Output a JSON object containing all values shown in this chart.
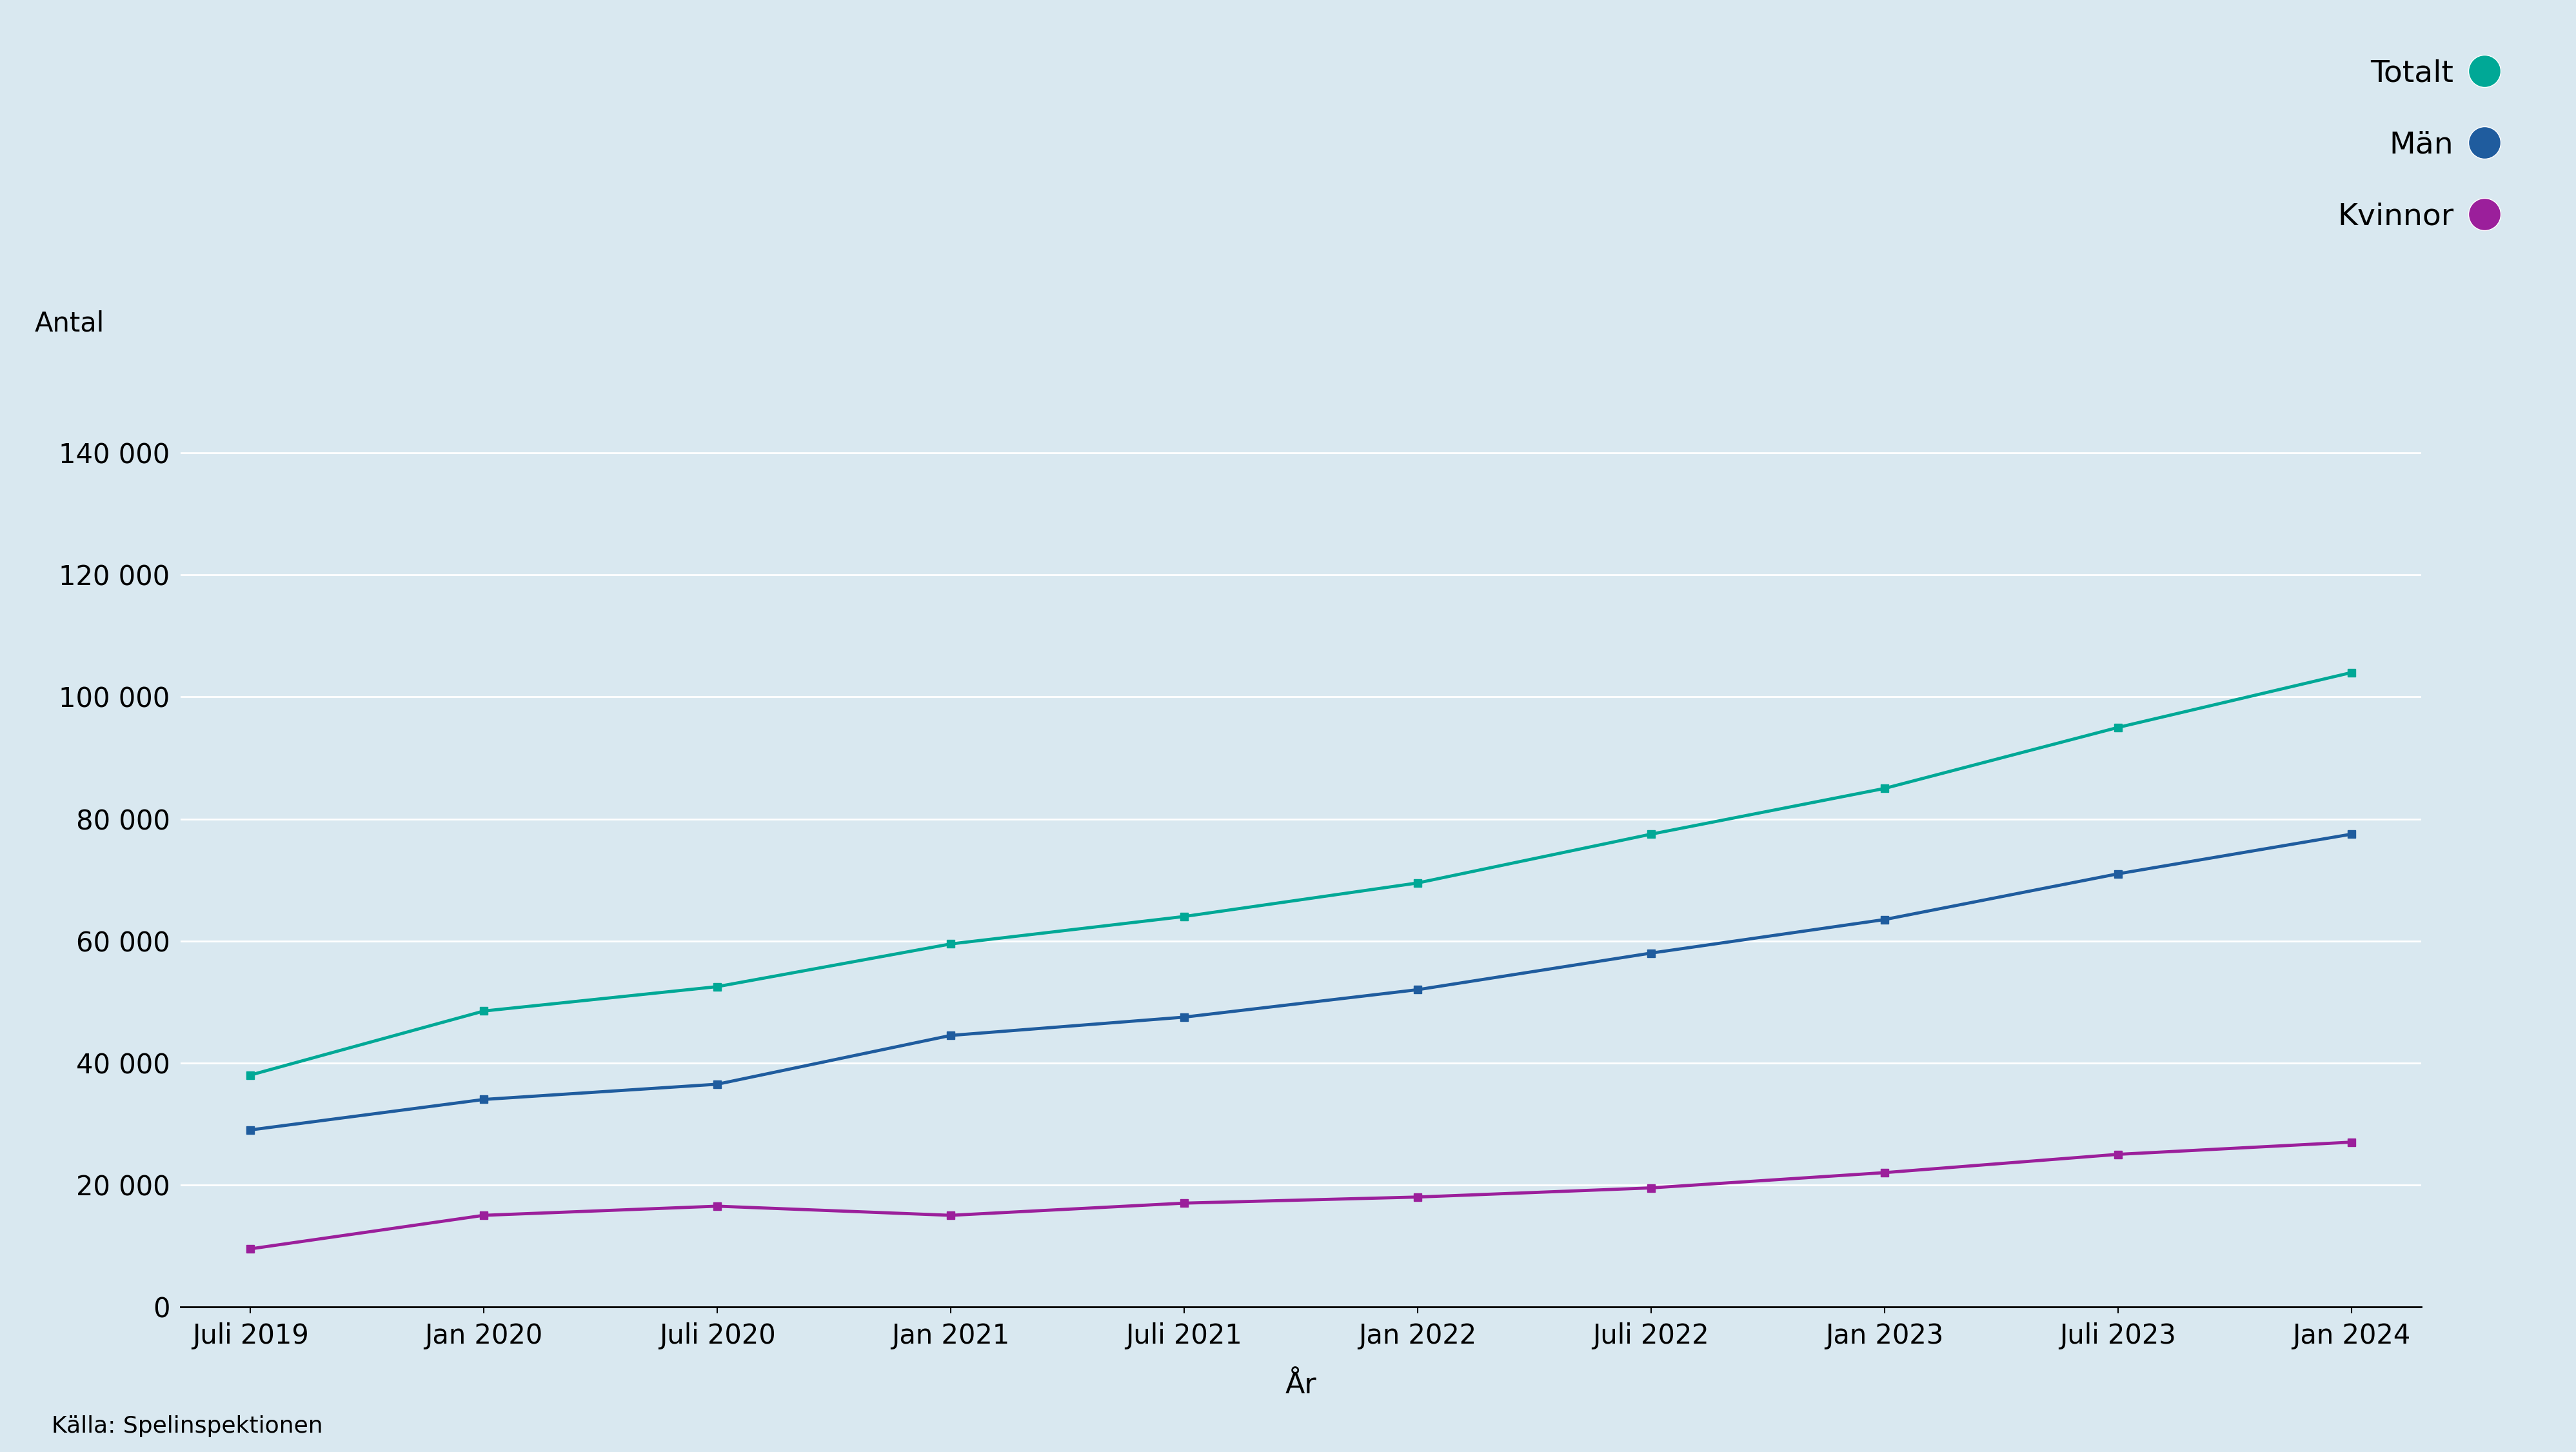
{
  "x_labels": [
    "Juli 2019",
    "Jan 2020",
    "Juli 2020",
    "Jan 2021",
    "Juli 2021",
    "Jan 2022",
    "Juli 2022",
    "Jan 2023",
    "Juli 2023",
    "Jan 2024"
  ],
  "totalt": [
    38000,
    48500,
    52500,
    59500,
    64000,
    69500,
    77500,
    85000,
    95000,
    104000
  ],
  "man": [
    29000,
    34000,
    36500,
    44500,
    47500,
    52000,
    58000,
    63500,
    71000,
    77500
  ],
  "kvinnor": [
    9500,
    15000,
    16500,
    15000,
    17000,
    18000,
    19500,
    22000,
    25000,
    27000
  ],
  "totalt_color": "#00A896",
  "man_color": "#1F5C9E",
  "kvinnor_color": "#9B1F9B",
  "background_color": "#D9E8F0",
  "ylabel": "Antal",
  "xlabel": "År",
  "ylim": [
    0,
    150000
  ],
  "yticks": [
    0,
    20000,
    40000,
    60000,
    80000,
    100000,
    120000,
    140000
  ],
  "legend_totalt": "Totalt",
  "legend_man": "Män",
  "legend_kvinnor": "Kvinnor",
  "source_text": "Källa: Spelinspektionen",
  "line_width": 3.5,
  "marker_size": 9,
  "marker_style": "s"
}
